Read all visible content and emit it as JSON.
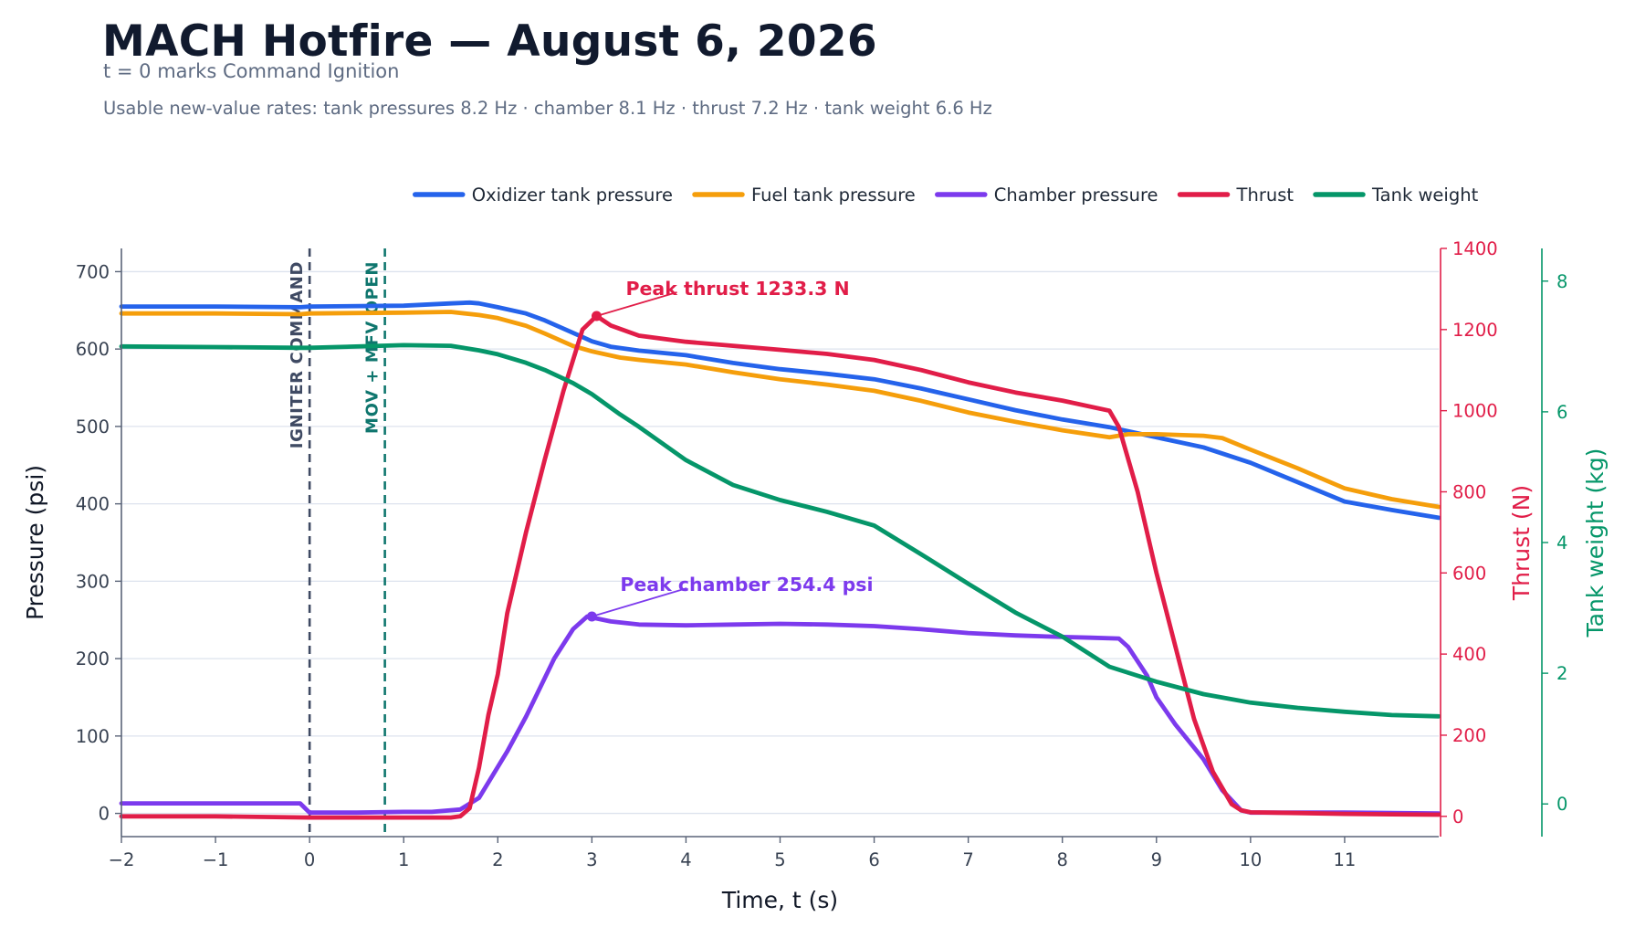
{
  "header": {
    "title": "MACH Hotfire — August 6, 2026",
    "subtitle": "t = 0 marks Command Ignition",
    "note": "Usable new-value rates: tank pressures 8.2 Hz · chamber 8.1 Hz · thrust 7.2 Hz · tank weight 6.6 Hz"
  },
  "colors": {
    "oxidizer": "#2563eb",
    "fuel": "#f59e0b",
    "chamber": "#7c3aed",
    "thrust": "#e11d48",
    "weight": "#059669",
    "igniter_line": "#3f4a63",
    "valve_line": "#0f766e",
    "axis": "#1f2937",
    "grid": "#dde3ee"
  },
  "chart_data": {
    "type": "line",
    "x_label": "Time, t (s)",
    "x_range": [
      -2,
      12
    ],
    "x_ticks": [
      -2,
      -1,
      0,
      1,
      2,
      3,
      4,
      5,
      6,
      7,
      8,
      9,
      10,
      11
    ],
    "grid": "horizontal",
    "legend_position": "top",
    "axes": {
      "left": {
        "label": "Pressure (psi)",
        "range": [
          -30,
          730
        ],
        "ticks": [
          0,
          100,
          200,
          300,
          400,
          500,
          600,
          700
        ]
      },
      "right": {
        "label": "Thrust (N)",
        "range": [
          -50,
          1400
        ],
        "ticks": [
          0,
          200,
          400,
          600,
          800,
          1000,
          1200,
          1400
        ]
      },
      "right2": {
        "label": "Tank weight (kg)",
        "range": [
          -0.5,
          8.5
        ],
        "ticks": [
          0,
          2,
          4,
          6,
          8
        ]
      }
    },
    "series": [
      {
        "name": "Oxidizer tank pressure",
        "axis": "left",
        "color_key": "oxidizer",
        "x": [
          -2,
          -1,
          -0.1,
          0,
          1,
          1.5,
          1.7,
          1.8,
          2,
          2.3,
          2.5,
          2.8,
          3,
          3.2,
          3.5,
          4,
          4.5,
          5,
          5.5,
          6,
          6.5,
          7,
          7.5,
          8,
          8.5,
          9,
          9.5,
          10,
          10.5,
          11,
          11.5,
          12
        ],
        "y": [
          655,
          655,
          654,
          655,
          656,
          659,
          660,
          659,
          654,
          646,
          637,
          621,
          610,
          603,
          598,
          592,
          582,
          574,
          568,
          561,
          549,
          535,
          521,
          509,
          499,
          486,
          473,
          453,
          428,
          403,
          392,
          382
        ]
      },
      {
        "name": "Fuel tank pressure",
        "axis": "left",
        "color_key": "fuel",
        "x": [
          -2,
          -1,
          -0.1,
          0,
          1,
          1.5,
          1.8,
          2,
          2.3,
          2.5,
          2.8,
          3,
          3.3,
          3.5,
          4,
          4.5,
          5,
          5.5,
          6,
          6.5,
          7,
          7.5,
          8,
          8.5,
          8.7,
          9,
          9.5,
          9.7,
          10,
          10.5,
          11,
          11.5,
          12
        ],
        "y": [
          646,
          646,
          645,
          646,
          647,
          648,
          644,
          640,
          630,
          620,
          604,
          597,
          589,
          586,
          580,
          570,
          561,
          554,
          546,
          533,
          518,
          506,
          495,
          486,
          490,
          490,
          488,
          485,
          470,
          446,
          420,
          406,
          396
        ]
      },
      {
        "name": "Chamber pressure",
        "axis": "left",
        "color_key": "chamber",
        "x": [
          -2,
          -1,
          -0.1,
          0,
          0.5,
          1,
          1.3,
          1.6,
          1.8,
          2.1,
          2.3,
          2.6,
          2.8,
          2.95,
          3.2,
          3.5,
          4,
          4.5,
          5,
          5.5,
          6,
          6.5,
          7,
          7.5,
          8,
          8.3,
          8.6,
          8.7,
          8.9,
          9,
          9.2,
          9.5,
          9.7,
          9.9,
          10,
          11,
          12
        ],
        "y": [
          13,
          13,
          13,
          1,
          1,
          2,
          2,
          5,
          20,
          80,
          125,
          200,
          238,
          254.4,
          248,
          244,
          243,
          244,
          245,
          244,
          242,
          238,
          233,
          230,
          228,
          227,
          226,
          215,
          178,
          150,
          115,
          70,
          30,
          4,
          1,
          1,
          0
        ]
      },
      {
        "name": "Thrust",
        "axis": "right",
        "color_key": "thrust",
        "x": [
          -2,
          -1,
          0,
          1,
          1.5,
          1.6,
          1.7,
          1.8,
          1.9,
          2,
          2.1,
          2.3,
          2.5,
          2.7,
          2.9,
          3.05,
          3.2,
          3.5,
          4,
          4.5,
          5,
          5.5,
          6,
          6.5,
          7,
          7.5,
          8,
          8.5,
          8.6,
          8.8,
          9,
          9.2,
          9.4,
          9.6,
          9.8,
          9.9,
          10,
          10.5,
          11,
          11.5,
          12
        ],
        "y": [
          0,
          0,
          -3,
          -3,
          -3,
          0,
          20,
          120,
          250,
          350,
          500,
          700,
          880,
          1050,
          1200,
          1233.3,
          1210,
          1185,
          1170,
          1160,
          1150,
          1140,
          1125,
          1100,
          1070,
          1045,
          1025,
          1000,
          960,
          800,
          600,
          420,
          240,
          110,
          30,
          15,
          10,
          8,
          6,
          5,
          4
        ]
      },
      {
        "name": "Tank weight",
        "axis": "right2",
        "color_key": "weight",
        "x": [
          -2,
          -1,
          -0.1,
          0,
          1,
          1.5,
          1.8,
          2,
          2.3,
          2.5,
          2.8,
          3,
          3.3,
          3.5,
          4,
          4.5,
          5,
          5.5,
          6,
          6.5,
          7,
          7.5,
          8,
          8.5,
          9,
          9.5,
          10,
          10.5,
          11,
          11.5,
          12
        ],
        "y": [
          7.0,
          6.99,
          6.98,
          6.98,
          7.02,
          7.01,
          6.94,
          6.88,
          6.75,
          6.64,
          6.44,
          6.27,
          5.96,
          5.77,
          5.26,
          4.88,
          4.65,
          4.47,
          4.26,
          3.82,
          3.37,
          2.93,
          2.56,
          2.1,
          1.87,
          1.68,
          1.55,
          1.47,
          1.41,
          1.36,
          1.34
        ]
      }
    ],
    "markers": [
      {
        "label": "IGNITER COMMAND",
        "x": 0,
        "color_key": "igniter_line"
      },
      {
        "label": "MOV + MFV OPEN",
        "x": 0.8,
        "color_key": "valve_line"
      }
    ],
    "annotations": [
      {
        "text": "Peak thrust 1233.3 N",
        "x": 3.05,
        "y": 1233.3,
        "axis": "right",
        "color_key": "thrust"
      },
      {
        "text": "Peak chamber 254.4 psi",
        "x": 3.0,
        "y": 254.4,
        "axis": "left",
        "color_key": "chamber"
      }
    ]
  }
}
